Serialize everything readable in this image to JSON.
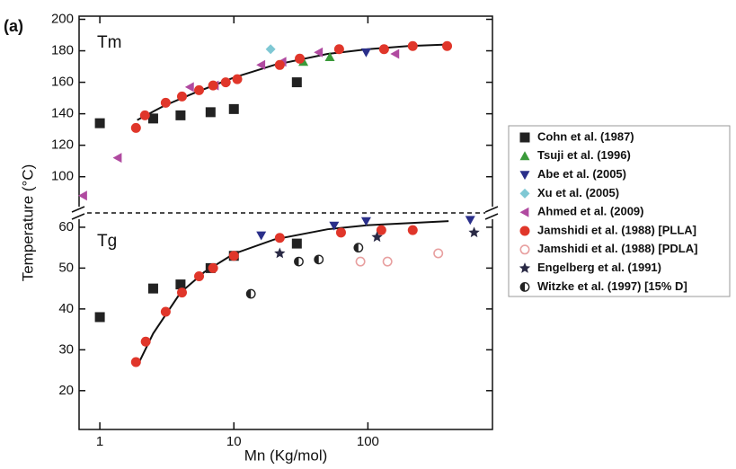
{
  "chart_data": {
    "type": "scatter",
    "label": "(a)",
    "xlabel": "Mn (Kg/mol)",
    "ylabel": "Temperature (°C)",
    "xscale": "log",
    "xlim": [
      0.7,
      850
    ],
    "xticks": [
      1,
      10,
      100
    ],
    "legend": "right",
    "panels": [
      {
        "label": "Tm",
        "ylim": [
          77,
          202
        ],
        "yticks": [
          100,
          120,
          140,
          160,
          180,
          200
        ]
      },
      {
        "label": "Tg",
        "ylim": [
          10.5,
          63.5
        ],
        "yticks": [
          20,
          30,
          40,
          50,
          60
        ]
      }
    ],
    "series": [
      {
        "name": "Cohn et al. (1987)",
        "color": "#222222",
        "marker": "square",
        "data": [
          {
            "x": [
              1,
              2.5,
              4,
              6.7,
              10,
              29.5
            ],
            "values": [
              134,
              137,
              139,
              141,
              143,
              160
            ]
          },
          {
            "x": [
              1,
              2.5,
              4,
              6.7,
              10,
              29.5
            ],
            "values": [
              38,
              45,
              46,
              50,
              53,
              56
            ]
          }
        ]
      },
      {
        "name": "Tsuji et al. (1996)",
        "color": "#3a9a3a",
        "marker": "triangle-up",
        "data": [
          {
            "x": [
              33,
              52
            ],
            "values": [
              173,
              176
            ]
          },
          null
        ]
      },
      {
        "name": "Abe et al. (2005)",
        "color": "#2a2f8a",
        "marker": "triangle-down",
        "data": [
          {
            "x": [
              97
            ],
            "values": [
              179
            ]
          },
          {
            "x": [
              16,
              56,
              97,
              580
            ],
            "values": [
              58,
              60.4,
              61.5,
              61.8
            ]
          }
        ]
      },
      {
        "name": "Xu et al. (2005)",
        "color": "#7fc8d4",
        "marker": "diamond",
        "data": [
          {
            "x": [
              18.8
            ],
            "values": [
              181
            ]
          },
          null
        ]
      },
      {
        "name": "Ahmed et al. (2009)",
        "color": "#b04aa0",
        "marker": "triangle-left",
        "data": [
          {
            "x": [
              0.75,
              1.36,
              4.7,
              7.2,
              16,
              23,
              43,
              160
            ],
            "values": [
              88,
              112,
              157,
              158,
              171,
              173,
              179,
              178
            ]
          },
          null
        ]
      },
      {
        "name": "Jamshidi et al. (1988) [PLLA]",
        "color": "#e0362a",
        "marker": "circle",
        "data": [
          {
            "x": [
              1.86,
              2.17,
              3.1,
              4.1,
              5.5,
              7,
              8.7,
              10.6,
              22,
              31,
              61,
              132,
              216,
              390
            ],
            "values": [
              131,
              139,
              147,
              151,
              155,
              158,
              160,
              162,
              171,
              175,
              181,
              181,
              183,
              183
            ]
          },
          {
            "x": [
              1.86,
              2.2,
              3.1,
              4.1,
              5.5,
              7,
              10,
              22,
              63,
              126,
              216
            ],
            "values": [
              27,
              32,
              39.3,
              44,
              48,
              50,
              53,
              57.4,
              58.7,
              59.3,
              59.3
            ]
          }
        ]
      },
      {
        "name": "Jamshidi et al. (1988) [PDLA]",
        "color": "#e8a0a0",
        "marker": "circle-open",
        "data": [
          null,
          {
            "x": [
              88,
              140,
              335
            ],
            "values": [
              51.6,
              51.6,
              53.6
            ]
          }
        ]
      },
      {
        "name": "Engelberg et al. (1991)",
        "color": "#2a2a45",
        "marker": "star",
        "data": [
          null,
          {
            "x": [
              22,
              117,
              620
            ],
            "values": [
              53.6,
              57.6,
              58.7
            ]
          }
        ]
      },
      {
        "name": "Witzke et al. (1997) [15% D]",
        "color": "#222222",
        "marker": "circle-half",
        "data": [
          null,
          {
            "x": [
              13.4,
              30.5,
              43,
              85
            ],
            "values": [
              43.7,
              51.6,
              52.1,
              55
            ]
          }
        ]
      }
    ],
    "fit": {
      "color": "#111111",
      "data": [
        {
          "x": [
            1.9,
            3,
            5,
            10,
            20,
            50,
            100,
            200,
            400
          ],
          "values": [
            136,
            145,
            153,
            163,
            171,
            178,
            181,
            183,
            184
          ]
        },
        {
          "x": [
            1.9,
            2.5,
            4,
            6,
            10,
            20,
            50,
            100,
            200,
            400
          ],
          "values": [
            26,
            34,
            44,
            49,
            53.5,
            57,
            59.5,
            60.5,
            61,
            61.5
          ]
        }
      ]
    }
  }
}
